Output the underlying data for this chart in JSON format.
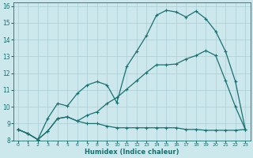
{
  "xlabel": "Humidex (Indice chaleur)",
  "background_color": "#cce8ec",
  "grid_color": "#aacdd4",
  "line_color": "#1a7070",
  "xlim": [
    -0.5,
    23.5
  ],
  "ylim": [
    8,
    16.2
  ],
  "xticks": [
    0,
    1,
    2,
    3,
    4,
    5,
    6,
    7,
    8,
    9,
    10,
    11,
    12,
    13,
    14,
    15,
    16,
    17,
    18,
    19,
    20,
    21,
    22,
    23
  ],
  "yticks": [
    8,
    9,
    10,
    11,
    12,
    13,
    14,
    15,
    16
  ],
  "x_values": [
    0,
    1,
    2,
    3,
    4,
    5,
    6,
    7,
    8,
    9,
    10,
    11,
    12,
    13,
    14,
    15,
    16,
    17,
    18,
    19,
    20,
    21,
    22,
    23
  ],
  "line1_y": [
    8.65,
    8.4,
    8.05,
    9.3,
    10.2,
    10.05,
    10.8,
    11.3,
    11.5,
    11.3,
    10.25,
    12.4,
    13.3,
    14.25,
    15.45,
    15.75,
    15.65,
    15.35,
    15.7,
    15.25,
    14.5,
    13.3,
    11.5,
    8.65
  ],
  "line2_y": [
    8.65,
    8.4,
    8.05,
    8.55,
    9.3,
    9.4,
    9.15,
    9.0,
    9.0,
    8.85,
    8.75,
    8.75,
    8.75,
    8.75,
    8.75,
    8.75,
    8.75,
    8.65,
    8.65,
    8.6,
    8.6,
    8.6,
    8.6,
    8.65
  ],
  "line3_y": [
    8.65,
    8.4,
    8.05,
    8.55,
    9.3,
    9.4,
    9.15,
    9.5,
    9.7,
    10.2,
    10.55,
    11.05,
    11.55,
    12.05,
    12.5,
    12.5,
    12.55,
    12.85,
    13.05,
    13.35,
    13.05,
    11.55,
    10.0,
    8.65
  ]
}
